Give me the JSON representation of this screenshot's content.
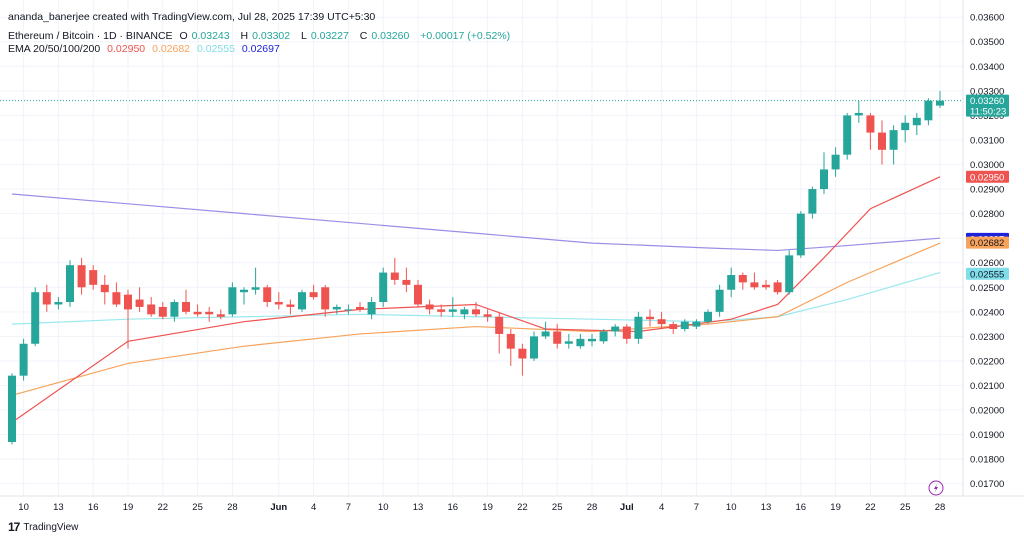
{
  "credit": "ananda_banerjee created with TradingView.com, Jul 28, 2025 17:39 UTC+5:30",
  "symbol": {
    "name": "Ethereum / Bitcoin · 1D · BINANCE",
    "o_label": "O",
    "o": "0.03243",
    "h_label": "H",
    "h": "0.03302",
    "l_label": "L",
    "l": "0.03227",
    "c_label": "C",
    "c": "0.03260",
    "change": "+0.00017 (+0.52%)"
  },
  "ema": {
    "label": "EMA 20/50/100/200",
    "v20": "0.02950",
    "v50": "0.02682",
    "v100": "0.02555",
    "v200": "0.02697"
  },
  "logo_text": "TradingView",
  "colors": {
    "up": "#26a69a",
    "down": "#ef5350",
    "ema20": "#ef5350",
    "ema50": "#f7a35c",
    "ema100": "#9ae8ee",
    "ema200": "#9b8ee6",
    "tag200": "#1e22d8",
    "tag50": "#f7a35c",
    "tag100": "#80deea"
  },
  "chart_data": {
    "type": "candlestick",
    "title": "Ethereum / Bitcoin · 1D · BINANCE",
    "y_ticks": [
      "0.03600",
      "0.03500",
      "0.03400",
      "0.03300",
      "0.03200",
      "0.03100",
      "0.03000",
      "0.02900",
      "0.02800",
      "0.02700",
      "0.02600",
      "0.02500",
      "0.02400",
      "0.02300",
      "0.02200",
      "0.02100",
      "0.02000",
      "0.01900",
      "0.01800",
      "0.01700"
    ],
    "ylim": [
      0.0165,
      0.0367
    ],
    "x_ticks": [
      {
        "label": "10",
        "i": 1
      },
      {
        "label": "13",
        "i": 4
      },
      {
        "label": "16",
        "i": 7
      },
      {
        "label": "19",
        "i": 10
      },
      {
        "label": "22",
        "i": 13
      },
      {
        "label": "25",
        "i": 16
      },
      {
        "label": "28",
        "i": 19
      },
      {
        "label": "Jun",
        "i": 23,
        "bold": true
      },
      {
        "label": "4",
        "i": 26
      },
      {
        "label": "7",
        "i": 29
      },
      {
        "label": "10",
        "i": 32
      },
      {
        "label": "13",
        "i": 35
      },
      {
        "label": "16",
        "i": 38
      },
      {
        "label": "19",
        "i": 41
      },
      {
        "label": "22",
        "i": 44
      },
      {
        "label": "25",
        "i": 47
      },
      {
        "label": "28",
        "i": 50
      },
      {
        "label": "Jul",
        "i": 53,
        "bold": true
      },
      {
        "label": "4",
        "i": 56
      },
      {
        "label": "7",
        "i": 59
      },
      {
        "label": "10",
        "i": 62
      },
      {
        "label": "13",
        "i": 65
      },
      {
        "label": "16",
        "i": 68
      },
      {
        "label": "19",
        "i": 71
      },
      {
        "label": "22",
        "i": 74
      },
      {
        "label": "25",
        "i": 77
      },
      {
        "label": "28",
        "i": 80
      }
    ],
    "candles": [
      [
        0.0187,
        0.0215,
        0.0186,
        0.0214
      ],
      [
        0.0214,
        0.0229,
        0.0212,
        0.0227
      ],
      [
        0.0227,
        0.025,
        0.0226,
        0.0248
      ],
      [
        0.0248,
        0.0251,
        0.024,
        0.0243
      ],
      [
        0.0243,
        0.0246,
        0.0241,
        0.0244
      ],
      [
        0.0244,
        0.0261,
        0.0242,
        0.0259
      ],
      [
        0.0259,
        0.0262,
        0.0247,
        0.025
      ],
      [
        0.0257,
        0.0259,
        0.0249,
        0.0251
      ],
      [
        0.0251,
        0.0255,
        0.0243,
        0.0248
      ],
      [
        0.0248,
        0.0252,
        0.0242,
        0.0243
      ],
      [
        0.0247,
        0.0249,
        0.0225,
        0.0241
      ],
      [
        0.0245,
        0.025,
        0.024,
        0.0242
      ],
      [
        0.0243,
        0.0246,
        0.0238,
        0.0239
      ],
      [
        0.0242,
        0.0244,
        0.0237,
        0.0238
      ],
      [
        0.0238,
        0.0245,
        0.0236,
        0.0244
      ],
      [
        0.0244,
        0.0249,
        0.0239,
        0.024
      ],
      [
        0.024,
        0.0243,
        0.0238,
        0.0239
      ],
      [
        0.024,
        0.0242,
        0.0236,
        0.0239
      ],
      [
        0.0239,
        0.0241,
        0.0237,
        0.0238
      ],
      [
        0.0239,
        0.0252,
        0.0238,
        0.025
      ],
      [
        0.0248,
        0.025,
        0.0243,
        0.0249
      ],
      [
        0.0249,
        0.0258,
        0.0247,
        0.025
      ],
      [
        0.025,
        0.0251,
        0.0242,
        0.0244
      ],
      [
        0.0244,
        0.0248,
        0.0241,
        0.0243
      ],
      [
        0.0243,
        0.0245,
        0.0239,
        0.0242
      ],
      [
        0.0241,
        0.0249,
        0.024,
        0.0248
      ],
      [
        0.0248,
        0.0251,
        0.0245,
        0.0246
      ],
      [
        0.025,
        0.0251,
        0.0238,
        0.0241
      ],
      [
        0.0241,
        0.0243,
        0.0239,
        0.0242
      ],
      [
        0.0241,
        0.0243,
        0.0239,
        0.0241
      ],
      [
        0.0242,
        0.0244,
        0.024,
        0.0241
      ],
      [
        0.0239,
        0.0246,
        0.0237,
        0.0244
      ],
      [
        0.0244,
        0.0258,
        0.0242,
        0.0256
      ],
      [
        0.0256,
        0.0262,
        0.0251,
        0.0253
      ],
      [
        0.0253,
        0.0258,
        0.0248,
        0.0251
      ],
      [
        0.0251,
        0.0253,
        0.0242,
        0.0243
      ],
      [
        0.0243,
        0.0245,
        0.0239,
        0.0241
      ],
      [
        0.0241,
        0.0243,
        0.0238,
        0.024
      ],
      [
        0.024,
        0.0246,
        0.0238,
        0.0241
      ],
      [
        0.0239,
        0.0242,
        0.0237,
        0.0241
      ],
      [
        0.0241,
        0.0244,
        0.0238,
        0.0239
      ],
      [
        0.0239,
        0.0241,
        0.0236,
        0.0238
      ],
      [
        0.0238,
        0.024,
        0.0223,
        0.0231
      ],
      [
        0.0231,
        0.0233,
        0.0218,
        0.0225
      ],
      [
        0.0225,
        0.0227,
        0.0214,
        0.0221
      ],
      [
        0.0221,
        0.0232,
        0.022,
        0.023
      ],
      [
        0.023,
        0.0236,
        0.0229,
        0.0232
      ],
      [
        0.0232,
        0.0235,
        0.0225,
        0.0227
      ],
      [
        0.0227,
        0.0231,
        0.0225,
        0.0228
      ],
      [
        0.0226,
        0.0231,
        0.0225,
        0.0229
      ],
      [
        0.0228,
        0.0231,
        0.0226,
        0.0229
      ],
      [
        0.0228,
        0.0233,
        0.0227,
        0.0232
      ],
      [
        0.0232,
        0.0235,
        0.023,
        0.0234
      ],
      [
        0.0234,
        0.0235,
        0.0227,
        0.0229
      ],
      [
        0.0229,
        0.024,
        0.0227,
        0.0238
      ],
      [
        0.0238,
        0.0241,
        0.0234,
        0.0237
      ],
      [
        0.0237,
        0.024,
        0.0233,
        0.0235
      ],
      [
        0.0235,
        0.0236,
        0.0231,
        0.0233
      ],
      [
        0.0233,
        0.0237,
        0.0232,
        0.0236
      ],
      [
        0.0234,
        0.0237,
        0.0233,
        0.0236
      ],
      [
        0.0236,
        0.0241,
        0.0235,
        0.024
      ],
      [
        0.024,
        0.0251,
        0.0238,
        0.0249
      ],
      [
        0.0249,
        0.0258,
        0.0246,
        0.0255
      ],
      [
        0.0255,
        0.0256,
        0.0249,
        0.0252
      ],
      [
        0.0252,
        0.0256,
        0.0249,
        0.025
      ],
      [
        0.0251,
        0.0253,
        0.0249,
        0.025
      ],
      [
        0.0252,
        0.0253,
        0.0247,
        0.0248
      ],
      [
        0.0248,
        0.0265,
        0.0247,
        0.0263
      ],
      [
        0.0263,
        0.0281,
        0.0262,
        0.028
      ],
      [
        0.028,
        0.0291,
        0.0278,
        0.029
      ],
      [
        0.029,
        0.0305,
        0.0288,
        0.0298
      ],
      [
        0.0298,
        0.0307,
        0.0295,
        0.0304
      ],
      [
        0.0304,
        0.0321,
        0.0302,
        0.032
      ],
      [
        0.032,
        0.0326,
        0.0317,
        0.0321
      ],
      [
        0.032,
        0.0321,
        0.0306,
        0.0313
      ],
      [
        0.0313,
        0.0318,
        0.03,
        0.0306
      ],
      [
        0.0306,
        0.0316,
        0.03,
        0.0314
      ],
      [
        0.0314,
        0.032,
        0.0309,
        0.0317
      ],
      [
        0.0316,
        0.0321,
        0.0312,
        0.0319
      ],
      [
        0.0318,
        0.0327,
        0.0316,
        0.0326
      ],
      [
        0.0324,
        0.033,
        0.0323,
        0.0326
      ]
    ],
    "last_price": "0.03260",
    "countdown": "11:50:23",
    "ema20": [
      [
        0,
        0.0195
      ],
      [
        10,
        0.0228
      ],
      [
        20,
        0.0236
      ],
      [
        30,
        0.0241
      ],
      [
        40,
        0.0243
      ],
      [
        46,
        0.0233
      ],
      [
        54,
        0.0232
      ],
      [
        62,
        0.0237
      ],
      [
        66,
        0.0243
      ],
      [
        70,
        0.0262
      ],
      [
        74,
        0.0282
      ],
      [
        80,
        0.0295
      ]
    ],
    "ema50": [
      [
        0,
        0.0206
      ],
      [
        10,
        0.0219
      ],
      [
        20,
        0.0226
      ],
      [
        30,
        0.0231
      ],
      [
        40,
        0.0234
      ],
      [
        50,
        0.0232
      ],
      [
        60,
        0.0235
      ],
      [
        66,
        0.0238
      ],
      [
        72,
        0.0252
      ],
      [
        80,
        0.0268
      ]
    ],
    "ema100": [
      [
        0,
        0.0235
      ],
      [
        10,
        0.0237
      ],
      [
        20,
        0.0238
      ],
      [
        30,
        0.0239
      ],
      [
        40,
        0.0238
      ],
      [
        50,
        0.0237
      ],
      [
        60,
        0.0236
      ],
      [
        66,
        0.0238
      ],
      [
        72,
        0.0245
      ],
      [
        80,
        0.0256
      ]
    ],
    "ema200": [
      [
        0,
        0.0288
      ],
      [
        10,
        0.0284
      ],
      [
        20,
        0.028
      ],
      [
        30,
        0.0276
      ],
      [
        40,
        0.0272
      ],
      [
        50,
        0.0268
      ],
      [
        60,
        0.0266
      ],
      [
        66,
        0.0265
      ],
      [
        72,
        0.0267
      ],
      [
        80,
        0.027
      ]
    ]
  }
}
